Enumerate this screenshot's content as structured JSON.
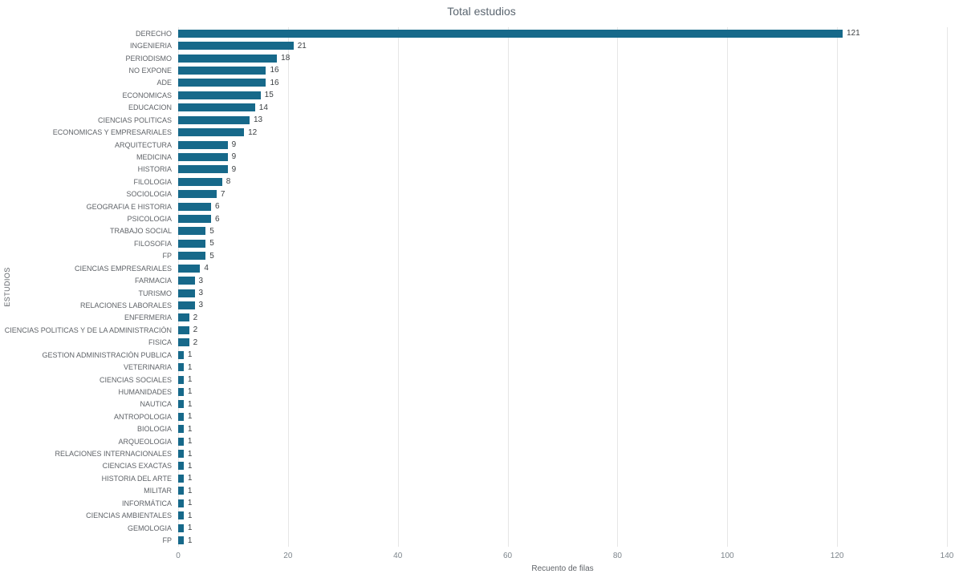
{
  "chart_data": {
    "type": "bar",
    "orientation": "horizontal",
    "title": "Total estudios",
    "xlabel": "Recuento de filas",
    "ylabel": "ESTUDIOS",
    "xlim": [
      0,
      140
    ],
    "x_ticks": [
      0,
      20,
      40,
      60,
      80,
      100,
      120,
      140
    ],
    "grid": true,
    "legend": false,
    "bar_color": "#17698a",
    "categories": [
      "DERECHO",
      "INGENIERIA",
      "PERIODISMO",
      "NO EXPONE",
      "ADE",
      "ECONOMICAS",
      "EDUCACION",
      "CIENCIAS POLITICAS",
      "ECONOMICAS Y EMPRESARIALES",
      "ARQUITECTURA",
      "MEDICINA",
      "HISTORIA",
      "FILOLOGIA",
      "SOCIOLOGIA",
      "GEOGRAFIA E HISTORIA",
      "PSICOLOGIA",
      "TRABAJO SOCIAL",
      "FILOSOFIA",
      "FP",
      "CIENCIAS EMPRESARIALES",
      "FARMACIA",
      "TURISMO",
      "RELACIONES LABORALES",
      "ENFERMERIA",
      "CIENCIAS POLITICAS Y DE LA ADMINISTRACIÓN",
      "FISICA",
      "GESTION ADMINISTRACIÓN PUBLICA",
      "VETERINARIA",
      "CIENCIAS SOCIALES",
      "HUMANIDADES",
      "NAUTICA",
      "ANTROPOLOGIA",
      "BIOLOGIA",
      "ARQUEOLOGIA",
      "RELACIONES INTERNACIONALES",
      "CIENCIAS EXACTAS",
      "HISTORIA DEL ARTE",
      "MILITAR",
      "INFORMÁTICA",
      "CIENCIAS AMBIENTALES",
      "GEMOLOGIA",
      "FP"
    ],
    "values": [
      121,
      21,
      18,
      16,
      16,
      15,
      14,
      13,
      12,
      9,
      9,
      9,
      8,
      7,
      6,
      6,
      5,
      5,
      5,
      4,
      3,
      3,
      3,
      2,
      2,
      2,
      1,
      1,
      1,
      1,
      1,
      1,
      1,
      1,
      1,
      1,
      1,
      1,
      1,
      1,
      1,
      1
    ]
  }
}
